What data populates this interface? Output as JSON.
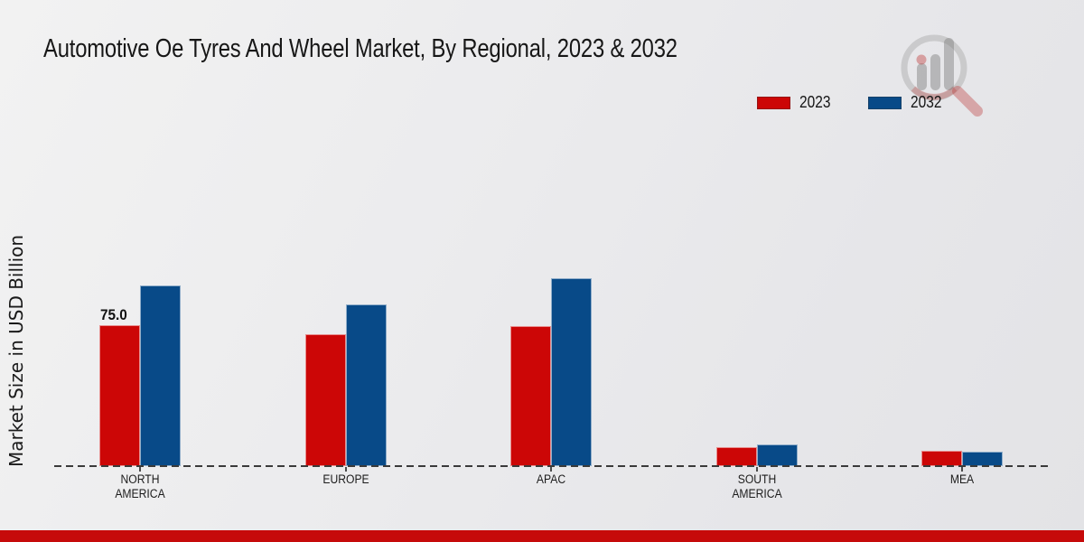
{
  "title": "Automotive Oe Tyres And Wheel Market, By Regional, 2023 & 2032",
  "y_axis_label": "Market Size in USD Billion",
  "legend": {
    "items": [
      {
        "label": "2023",
        "color": "#cc0606"
      },
      {
        "label": "2032",
        "color": "#084a88"
      }
    ]
  },
  "colors": {
    "series_2023": "#cc0606",
    "series_2032": "#084a88",
    "bottom_bar": "#c60a0a",
    "baseline": "#3a3a3a",
    "background": "#e9e9eb"
  },
  "watermark": {
    "icon": "magnifier-bar-chart-logo"
  },
  "chart_data": {
    "type": "bar",
    "title": "Automotive Oe Tyres And Wheel Market, By Regional, 2023 & 2032",
    "categories": [
      "NORTH\nAMERICA",
      "EUROPE",
      "APAC",
      "SOUTH\nAMERICA",
      "MEA"
    ],
    "series": [
      {
        "name": "2023",
        "color": "#cc0606",
        "values": [
          75.0,
          70,
          74.5,
          10,
          8
        ]
      },
      {
        "name": "2032",
        "color": "#084a88",
        "values": [
          96,
          86,
          100,
          11.5,
          7.5
        ]
      }
    ],
    "bar_label": {
      "text": "75.0",
      "series_index": 0,
      "category_index": 0
    },
    "xlabel": "",
    "ylabel": "Market Size in USD Billion",
    "ylim": [
      0,
      105
    ],
    "grid": false,
    "legend_position": "top-right",
    "x_axis_style": "dashed"
  }
}
